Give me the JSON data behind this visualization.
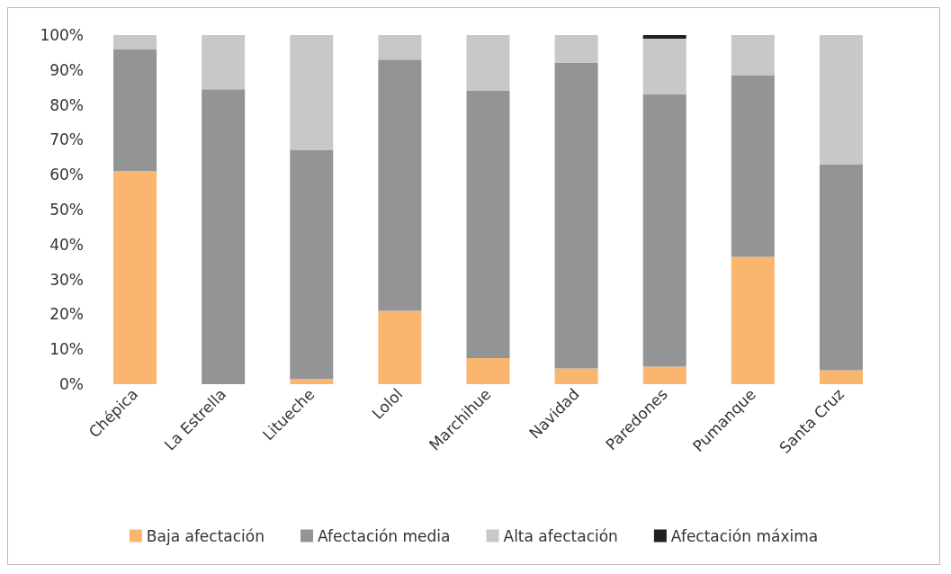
{
  "chart_data": {
    "type": "bar",
    "stacked": true,
    "categories": [
      "Chépica",
      "La Estrella",
      "Litueche",
      "Lolol",
      "Marchihue",
      "Navidad",
      "Paredones",
      "Pumanque",
      "Santa Cruz"
    ],
    "series": [
      {
        "name": "Baja afectación",
        "color": "#fab56e",
        "values": [
          61,
          0,
          1.5,
          21,
          7.5,
          4.5,
          5,
          36.5,
          4
        ]
      },
      {
        "name": "Afectación media",
        "color": "#939496",
        "values": [
          35,
          84.5,
          65.5,
          72,
          76.5,
          87.5,
          78,
          52,
          59
        ]
      },
      {
        "name": "Alta afectación",
        "color": "#c8c8c9",
        "values": [
          4,
          15.5,
          33,
          7,
          16,
          8,
          16,
          11.5,
          37
        ]
      },
      {
        "name": "Afectación máxima",
        "color": "#231f20",
        "values": [
          0,
          0,
          0,
          0,
          0,
          0,
          1,
          0,
          0
        ]
      }
    ],
    "ylim": [
      0,
      100
    ],
    "yticks": [
      {
        "value": 0,
        "label": "0%"
      },
      {
        "value": 10,
        "label": "10%"
      },
      {
        "value": 20,
        "label": "20%"
      },
      {
        "value": 30,
        "label": "30%"
      },
      {
        "value": 40,
        "label": "40%"
      },
      {
        "value": 50,
        "label": "50%"
      },
      {
        "value": 60,
        "label": "60%"
      },
      {
        "value": 70,
        "label": "70%"
      },
      {
        "value": 80,
        "label": "80%"
      },
      {
        "value": 90,
        "label": "90%"
      },
      {
        "value": 100,
        "label": "100%"
      }
    ],
    "grid": false,
    "legend": "bottom"
  }
}
